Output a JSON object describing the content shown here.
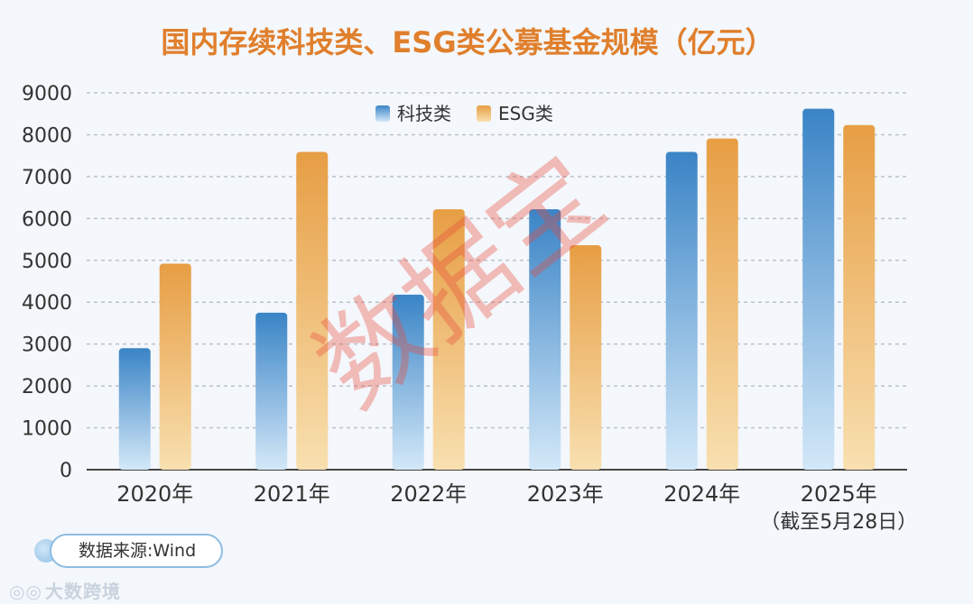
{
  "chart_data": {
    "type": "bar",
    "title": "国内存续科技类、ESG类公募基金规模（亿元）",
    "categories": [
      "2020年",
      "2021年",
      "2022年",
      "2023年",
      "2024年",
      "2025年"
    ],
    "category_sublabels": [
      "",
      "",
      "",
      "",
      "",
      "（截至5月28日）"
    ],
    "series": [
      {
        "name": "科技类",
        "values": [
          2900,
          3750,
          4180,
          6220,
          7590,
          8620
        ],
        "color_top": "#3a84c6",
        "color_bottom": "#cfe5f7"
      },
      {
        "name": "ESG类",
        "values": [
          4920,
          7590,
          6220,
          5360,
          7910,
          8230
        ],
        "color_top": "#e79e44",
        "color_bottom": "#f7dca9"
      }
    ],
    "ylim": [
      0,
      9000
    ],
    "yticks": [
      0,
      1000,
      2000,
      3000,
      4000,
      5000,
      6000,
      7000,
      8000,
      9000
    ],
    "grid": true,
    "legend_position": "top-center"
  },
  "watermark": "数据宝",
  "source_label": "数据来源:Wind",
  "brand": "大数跨境",
  "colors": {
    "title": "#e07f2c",
    "axis": "#333333",
    "grid": "#b9c2cc"
  }
}
